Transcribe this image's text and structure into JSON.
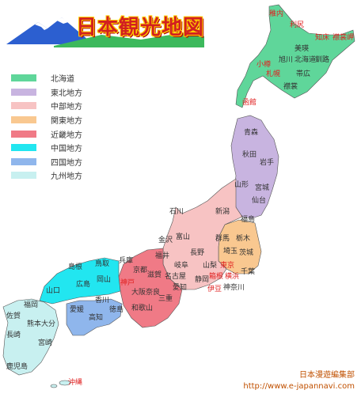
{
  "title": "日本観光地図",
  "colors": {
    "hokkaido": "#5fd69a",
    "tohoku": "#c8b4e0",
    "chubu": "#f7c3c3",
    "kanto": "#f9c890",
    "kinki": "#f07a86",
    "chugoku": "#22e6f0",
    "shikoku": "#8fb6ec",
    "kyushu": "#c8f0f0",
    "title_red": "#d22020",
    "mountain_green": "#3cb95c",
    "mountain_blue": "#2c5fd0"
  },
  "legend": [
    {
      "label": "北海道",
      "color": "#5fd69a"
    },
    {
      "label": "東北地方",
      "color": "#c8b4e0"
    },
    {
      "label": "中部地方",
      "color": "#f7c3c3"
    },
    {
      "label": "関東地方",
      "color": "#f9c890"
    },
    {
      "label": "近畿地方",
      "color": "#f07a86"
    },
    {
      "label": "中国地方",
      "color": "#22e6f0"
    },
    {
      "label": "四国地方",
      "color": "#8fb6ec"
    },
    {
      "label": "九州地方",
      "color": "#c8f0f0"
    }
  ],
  "prefectures": [
    "北海道",
    "美瑛",
    "旭川",
    "帯広",
    "釧路",
    "青森",
    "秋田",
    "岩手",
    "山形",
    "宮城",
    "仙台",
    "福島",
    "新潟",
    "石川",
    "金沢",
    "富山",
    "福井",
    "長野",
    "岐阜",
    "山梨",
    "静岡",
    "愛知",
    "名古屋",
    "群馬",
    "栃木",
    "茨城",
    "埼玉",
    "千葉",
    "神奈川",
    "滋賀",
    "京都",
    "兵庫",
    "大阪",
    "奈良",
    "三重",
    "和歌山",
    "鳥取",
    "島根",
    "岡山",
    "広島",
    "山口",
    "愛媛",
    "香川",
    "徳島",
    "高知",
    "福岡",
    "佐賀",
    "長崎",
    "熊本",
    "大分",
    "宮崎",
    "鹿児島"
  ],
  "cities": [
    "稚内",
    "利尻",
    "知床",
    "襟裳岬",
    "小樽",
    "札幌",
    "函館",
    "東京",
    "箱根",
    "横浜",
    "伊豆",
    "神戸",
    "沖縄"
  ],
  "credit": {
    "org": "日本漫遊編集部",
    "url": "http://www.e-japannavi.com"
  }
}
